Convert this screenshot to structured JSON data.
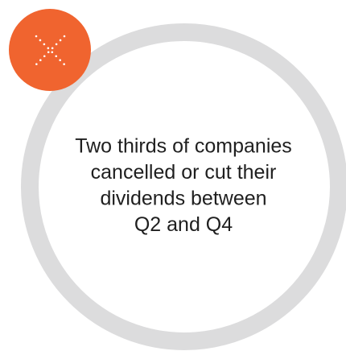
{
  "callout": {
    "text_lines": [
      "Two thirds of companies",
      "cancelled or cut their",
      "dividends between",
      "Q2 and Q4"
    ]
  }
}
